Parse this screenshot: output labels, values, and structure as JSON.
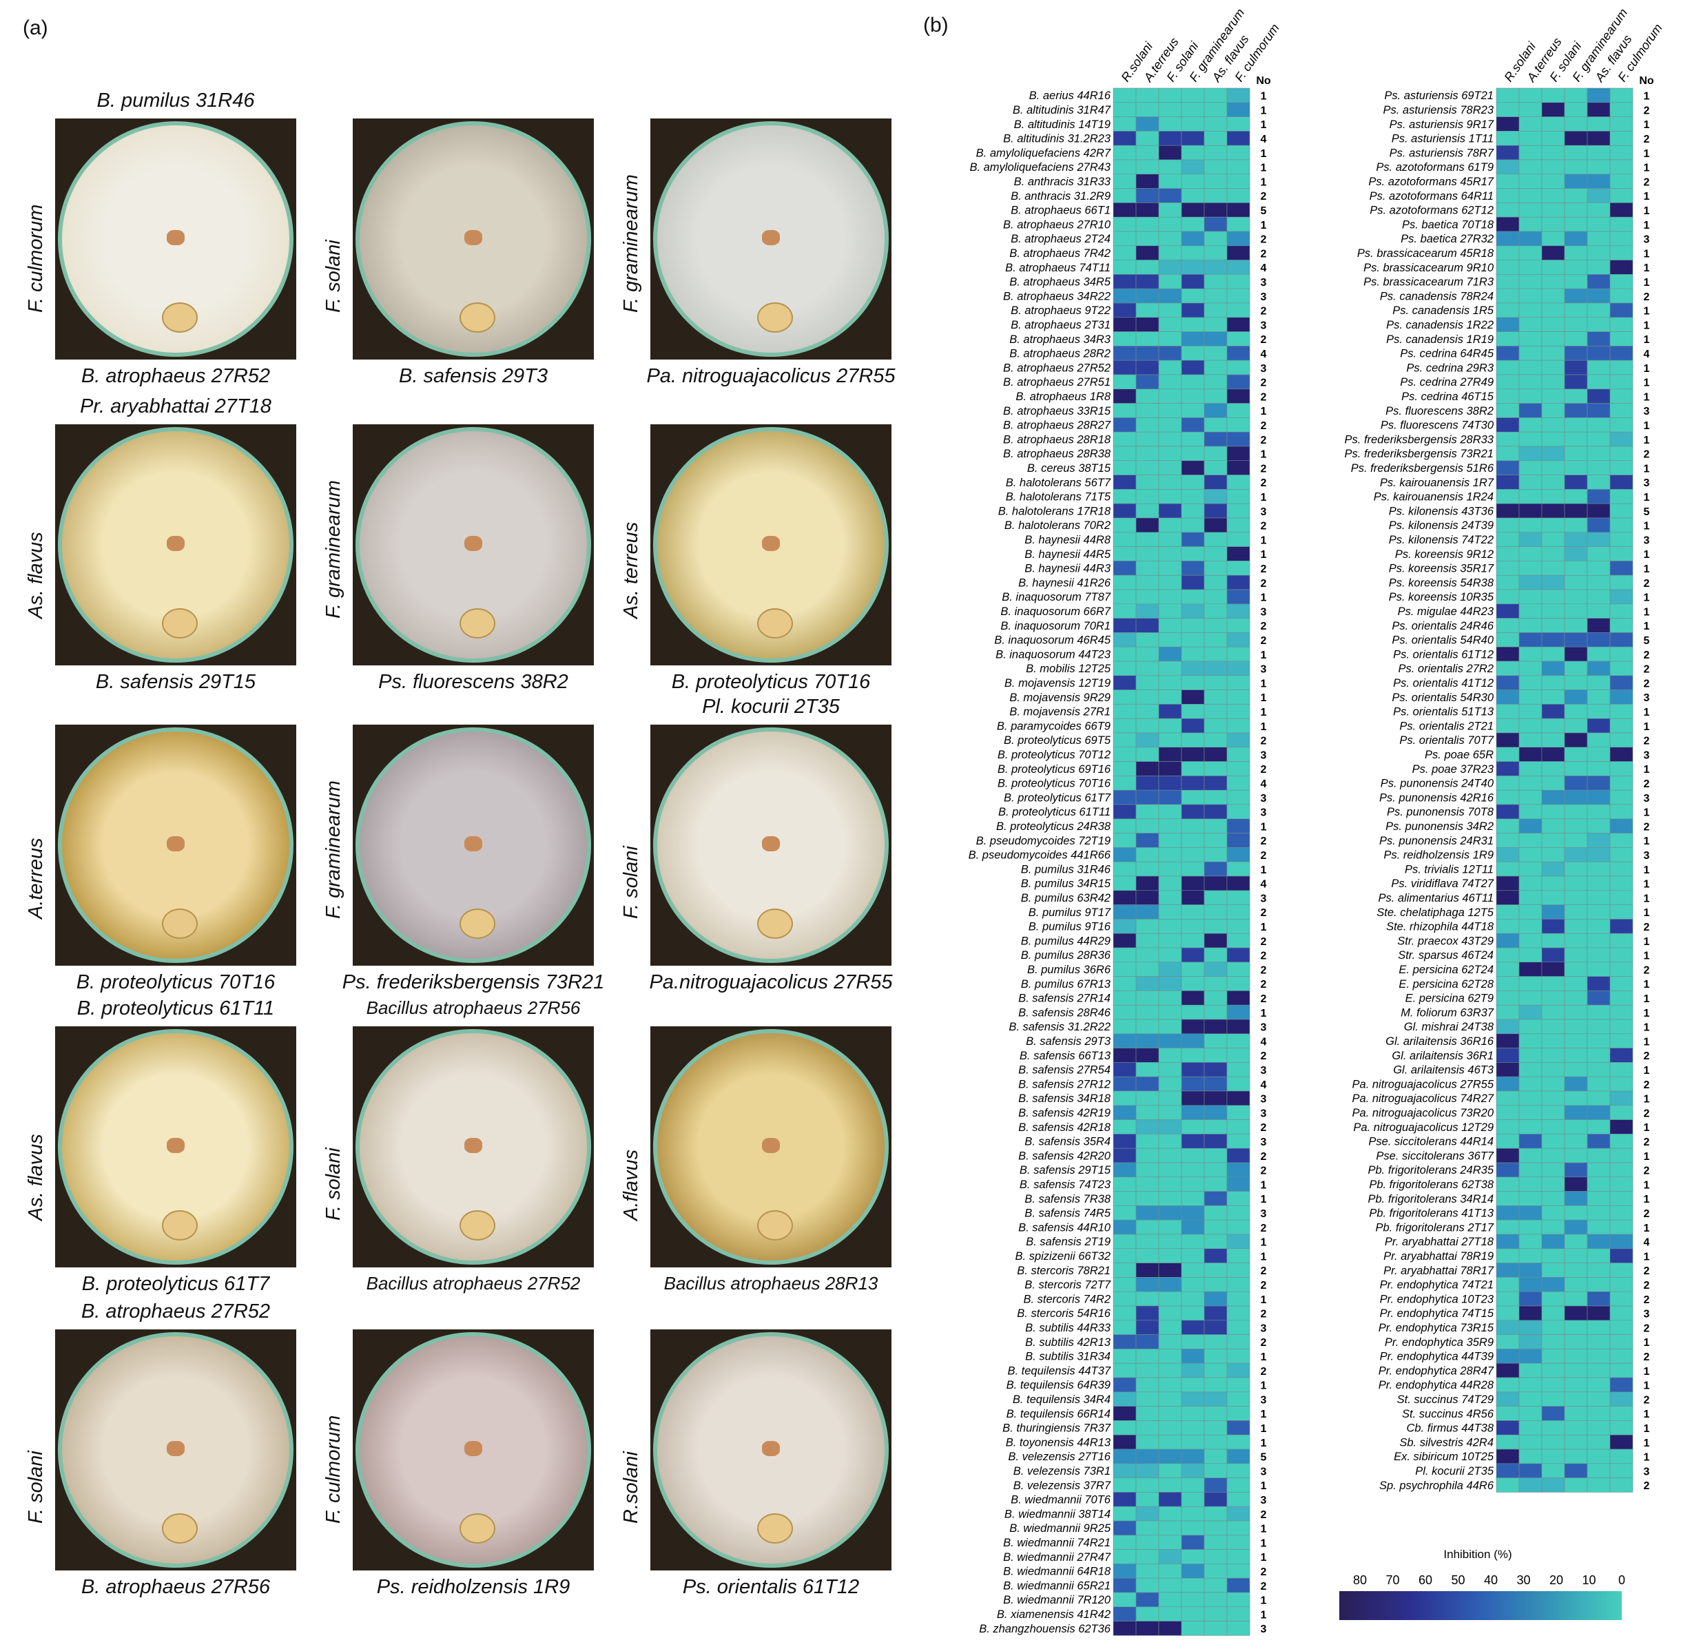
{
  "panel_labels": {
    "a": "(a)",
    "b": "(b)"
  },
  "photos": [
    {
      "top": "B.  pumilus 31R46",
      "side": "F. culmorum",
      "bottom": "B.  atrophaeus 27R52",
      "colors": [
        "#f0ede4",
        "#e8e2cf"
      ]
    },
    {
      "top": "",
      "side": "F. solani",
      "bottom": "B.  safensis 29T3",
      "colors": [
        "#d9d3c3",
        "#b8b0a0"
      ]
    },
    {
      "top": "",
      "side": "F. graminearum",
      "bottom": "Pa. nitroguajacolicus 27R55",
      "colors": [
        "#dfe0dc",
        "#c8cac4"
      ]
    },
    {
      "top": "Pr. aryabhattai 27T18",
      "side": "As. flavus",
      "bottom": "B.  safensis 29T15",
      "colors": [
        "#f2e6b8",
        "#c9b070"
      ]
    },
    {
      "top": "",
      "side": "F. graminearum",
      "bottom": "Ps.  fluorescens 38R2",
      "colors": [
        "#d8d2ce",
        "#bdb5b0"
      ]
    },
    {
      "top": "",
      "side": "As. terreus",
      "bottom": "B. proteolyticus 70T16",
      "colors": [
        "#f0e3b4",
        "#bca45c"
      ]
    },
    {
      "top": "",
      "side": "A.terreus",
      "bottom": "B.  proteolyticus 70T16",
      "colors": [
        "#efd9a0",
        "#b89540"
      ]
    },
    {
      "top": "",
      "side": "F. graminearum",
      "bottom": "Ps.  frederiksbergensis 73R21",
      "colors": [
        "#cbc4c6",
        "#a79da1"
      ]
    },
    {
      "top": "Pl. kocurii 2T35",
      "side": "F. solani",
      "bottom": "Pa.nitroguajacolicus 27R55",
      "colors": [
        "#ece7dc",
        "#cfc5b0"
      ]
    },
    {
      "top": "B.  proteolyticus 61T11",
      "side": "As. flavus",
      "bottom": "B.  proteolyticus 61T7",
      "colors": [
        "#f3e8c0",
        "#c9ac60"
      ]
    },
    {
      "top": "Bacillus atrophaeus 27R56",
      "side": "F. solani",
      "bottom": "Bacillus atrophaeus 27R52",
      "colors": [
        "#e8e1d6",
        "#c8bca6"
      ]
    },
    {
      "top": "",
      "side": "A.flavus",
      "bottom": "Bacillus atrophaeus 28R13",
      "colors": [
        "#ead596",
        "#b39045"
      ]
    },
    {
      "top": "B.  atrophaeus 27R52",
      "side": "F. solani",
      "bottom": "B.  atrophaeus 27R56",
      "colors": [
        "#e6ddcd",
        "#c4b49a"
      ]
    },
    {
      "top": "",
      "side": "F. culmorum",
      "bottom": "Ps.  reidholzensis 1R9",
      "colors": [
        "#d8c8c6",
        "#b09b97"
      ]
    },
    {
      "top": "",
      "side": "R.solani",
      "bottom": "Ps.  orientalis 61T12",
      "colors": [
        "#e6dfd6",
        "#c4b8a8"
      ]
    }
  ],
  "heatmap": {
    "columns": [
      "R.solani",
      "A.terreus",
      "F. solani",
      "F. graminearum",
      "As. flavus",
      "F. culmorum"
    ],
    "no_header": "No",
    "colorbar": {
      "title": "Inhibition (%)",
      "ticks": [
        "80",
        "70",
        "60",
        "50",
        "40",
        "30",
        "20",
        "10",
        "0"
      ]
    },
    "left": [
      [
        "B.  aerius 44R16",
        "1"
      ],
      [
        "B.  altitudinis 31R47",
        "1"
      ],
      [
        "B.  altitudinis 14T19",
        "1"
      ],
      [
        "B.  altitudinis 31.2R23",
        "4"
      ],
      [
        "B.  amyloliquefaciens 42R7",
        "1"
      ],
      [
        "B.  amyloliquefaciens 27R43",
        "1"
      ],
      [
        "B.  anthracis 31R33",
        "1"
      ],
      [
        "B.  anthracis 31.2R9",
        "2"
      ],
      [
        "B.  atrophaeus 66T1",
        "5"
      ],
      [
        "B.  atrophaeus 27R10",
        "1"
      ],
      [
        "B.  atrophaeus 2T24",
        "2"
      ],
      [
        "B.  atrophaeus 7R42",
        "2"
      ],
      [
        "B.  atrophaeus 74T11",
        "4"
      ],
      [
        "B.  atrophaeus 34R5",
        "3"
      ],
      [
        "B.  atrophaeus 34R22",
        "3"
      ],
      [
        "B.  atrophaeus 9T22",
        "2"
      ],
      [
        "B.  atrophaeus 2T31",
        "3"
      ],
      [
        "B.  atrophaeus 34R3",
        "2"
      ],
      [
        "B.  atrophaeus 28R2",
        "4"
      ],
      [
        "B.  atrophaeus 27R52",
        "3"
      ],
      [
        "B.  atrophaeus 27R51",
        "2"
      ],
      [
        "B.  atrophaeus 1R8",
        "2"
      ],
      [
        "B.  atrophaeus 33R15",
        "1"
      ],
      [
        "B.  atrophaeus 28R27",
        "2"
      ],
      [
        "B.  atrophaeus 28R18",
        "2"
      ],
      [
        "B.  atrophaeus 28R38",
        "1"
      ],
      [
        "B.  cereus 38T15",
        "2"
      ],
      [
        "B.  halotolerans 56T7",
        "2"
      ],
      [
        "B.  halotolerans 71T5",
        "1"
      ],
      [
        "B.  halotolerans 17R18",
        "3"
      ],
      [
        "B.  halotolerans 70R2",
        "2"
      ],
      [
        "B.  haynesii 44R8",
        "1"
      ],
      [
        "B.  haynesii 44R5",
        "1"
      ],
      [
        "B.  haynesii 44R3",
        "2"
      ],
      [
        "B.  haynesii 41R26",
        "2"
      ],
      [
        "B.  inaquosorum 7T87",
        "1"
      ],
      [
        "B.  inaquosorum 66R7",
        "3"
      ],
      [
        "B.  inaquosorum 70R1",
        "2"
      ],
      [
        "B.  inaquosorum 46R45",
        "2"
      ],
      [
        "B.  inaquosorum 44T23",
        "1"
      ],
      [
        "B.  mobilis 12T25",
        "3"
      ],
      [
        "B.  mojavensis 12T19",
        "1"
      ],
      [
        "B.  mojavensis 9R29",
        "1"
      ],
      [
        "B.  mojavensis 27R1",
        "1"
      ],
      [
        "B.  paramycoides 66T9",
        "1"
      ],
      [
        "B.  proteolyticus 69T5",
        "2"
      ],
      [
        "B.  proteolyticus 70T12",
        "3"
      ],
      [
        "B.  proteolyticus 69T16",
        "2"
      ],
      [
        "B.  proteolyticus 70T16",
        "4"
      ],
      [
        "B.  proteolyticus 61T7",
        "3"
      ],
      [
        "B.  proteolyticus 61T11",
        "3"
      ],
      [
        "B.  proteolyticus 24R38",
        "1"
      ],
      [
        "B.  pseudomycoides 72T19",
        "2"
      ],
      [
        "B.  pseudomycoides 441R66",
        "2"
      ],
      [
        "B.  pumilus 31R46",
        "1"
      ],
      [
        "B.  pumilus 34R15",
        "4"
      ],
      [
        "B.  pumilus 63R42",
        "3"
      ],
      [
        "B.  pumilus 9T17",
        "2"
      ],
      [
        "B.  pumilus 9T16",
        "1"
      ],
      [
        "B.  pumilus 44R29",
        "2"
      ],
      [
        "B.  pumilus 28R36",
        "2"
      ],
      [
        "B.  pumilus 36R6",
        "2"
      ],
      [
        "B.  pumilus 67R13",
        "2"
      ],
      [
        "B.  safensis 27R14",
        "2"
      ],
      [
        "B.  safensis 28R46",
        "1"
      ],
      [
        "B.  safensis 31.2R22",
        "3"
      ],
      [
        "B.  safensis 29T3",
        "4"
      ],
      [
        "B.  safensis 66T13",
        "2"
      ],
      [
        "B.  safensis 27R54",
        "3"
      ],
      [
        "B.  safensis 27R12",
        "4"
      ],
      [
        "B.  safensis 34R18",
        "3"
      ],
      [
        "B.  safensis 42R19",
        "3"
      ],
      [
        "B.  safensis 42R18",
        "2"
      ],
      [
        "B.  safensis 35R4",
        "3"
      ],
      [
        "B.  safensis 42R20",
        "2"
      ],
      [
        "B.  safensis 29T15",
        "2"
      ],
      [
        "B.  safensis 74T23",
        "1"
      ],
      [
        "B.  safensis 7R38",
        "1"
      ],
      [
        "B.  safensis 74R5",
        "3"
      ],
      [
        "B.  safensis 44R10",
        "2"
      ],
      [
        "B.  safensis 2T19",
        "1"
      ],
      [
        "B.  spizizenii 66T32",
        "1"
      ],
      [
        "B.  stercoris 78R21",
        "2"
      ],
      [
        "B.  stercoris 72T7",
        "2"
      ],
      [
        "B.  stercoris 74R2",
        "1"
      ],
      [
        "B.  stercoris 54R16",
        "2"
      ],
      [
        "B.  subtilis 44R33",
        "3"
      ],
      [
        "B.  subtilis 42R13",
        "2"
      ],
      [
        "B.  subtilis 31R34",
        "1"
      ],
      [
        "B.  tequilensis 44T37",
        "2"
      ],
      [
        "B.  tequilensis 64R39",
        "1"
      ],
      [
        "B.  tequilensis 34R4",
        "3"
      ],
      [
        "B.  tequilensis 66R14",
        "1"
      ],
      [
        "B.  thuringiensis 7R37",
        "1"
      ],
      [
        "B.  toyonensis 44R13",
        "1"
      ],
      [
        "B.  velezensis 27T16",
        "5"
      ],
      [
        "B.  velezensis 73R1",
        "3"
      ],
      [
        "B.  velezensis 37R7",
        "1"
      ],
      [
        "B.  wiedmannii 70T6",
        "3"
      ],
      [
        "B.  wiedmannii 38T14",
        "2"
      ],
      [
        "B.  wiedmannii 9R25",
        "1"
      ],
      [
        "B.  wiedmannii 74R21",
        "1"
      ],
      [
        "B.  wiedmannii 27R47",
        "1"
      ],
      [
        "B.  wiedmannii 64R18",
        "2"
      ],
      [
        "B.  wiedmannii 65R21",
        "2"
      ],
      [
        "B.  wiedmannii 7R120",
        "1"
      ],
      [
        "B.  xiamenensis 41R42",
        "1"
      ],
      [
        "B.  zhangzhouensis 62T36",
        "3"
      ]
    ],
    "right": [
      [
        "Ps.  asturiensis 69T21",
        "1"
      ],
      [
        "Ps.  asturiensis 78R23",
        "2"
      ],
      [
        "Ps.  asturiensis 9R17",
        "1"
      ],
      [
        "Ps.  asturiensis 1T11",
        "2"
      ],
      [
        "Ps.  asturiensis 78R7",
        "1"
      ],
      [
        "Ps.  azotoformans 61T9",
        "1"
      ],
      [
        "Ps.  azotoformans 45R17",
        "2"
      ],
      [
        "Ps.  azotoformans 64R11",
        "1"
      ],
      [
        "Ps.  azotoformans 62T12",
        "1"
      ],
      [
        "Ps.  baetica 70T18",
        "1"
      ],
      [
        "Ps.  baetica 27R32",
        "3"
      ],
      [
        "Ps.  brassicacearum 45R18",
        "1"
      ],
      [
        "Ps.  brassicacearum 9R10",
        "1"
      ],
      [
        "Ps.  brassicacearum 71R3",
        "1"
      ],
      [
        "Ps.  canadensis 78R24",
        "2"
      ],
      [
        "Ps.  canadensis 1R5",
        "1"
      ],
      [
        "Ps.  canadensis 1R22",
        "1"
      ],
      [
        "Ps.  canadensis 1R19",
        "1"
      ],
      [
        "Ps.  cedrina 64R45",
        "4"
      ],
      [
        "Ps.  cedrina 29R3",
        "1"
      ],
      [
        "Ps.  cedrina 27R49",
        "1"
      ],
      [
        "Ps.  cedrina 46T15",
        "1"
      ],
      [
        "Ps.  fluorescens 38R2",
        "3"
      ],
      [
        "Ps.  fluorescens 74T30",
        "1"
      ],
      [
        "Ps.  frederiksbergensis 28R33",
        "1"
      ],
      [
        "Ps.  frederiksbergensis 73R21",
        "2"
      ],
      [
        "Ps.  frederiksbergensis 51R6",
        "1"
      ],
      [
        "Ps.  kairouanensis 1R7",
        "3"
      ],
      [
        "Ps.  kairouanensis 1R24",
        "1"
      ],
      [
        "Ps.  kilonensis 43T36",
        "5"
      ],
      [
        "Ps.  kilonensis 24T39",
        "1"
      ],
      [
        "Ps.  kilonensis 74T22",
        "3"
      ],
      [
        "Ps.  koreensis 9R12",
        "1"
      ],
      [
        "Ps.  koreensis 35R17",
        "1"
      ],
      [
        "Ps.  koreensis 54R38",
        "2"
      ],
      [
        "Ps.  koreensis 10R35",
        "1"
      ],
      [
        "Ps.  migulae 44R23",
        "1"
      ],
      [
        "Ps.  orientalis 24R46",
        "1"
      ],
      [
        "Ps.  orientalis 54R40",
        "5"
      ],
      [
        "Ps.  orientalis 61T12",
        "2"
      ],
      [
        "Ps.  orientalis 27R2",
        "2"
      ],
      [
        "Ps.  orientalis 41T12",
        "2"
      ],
      [
        "Ps.  orientalis 54R30",
        "3"
      ],
      [
        "Ps.  orientalis 51T13",
        "1"
      ],
      [
        "Ps.  orientalis 2T21",
        "1"
      ],
      [
        "Ps.  orientalis 70T7",
        "2"
      ],
      [
        "Ps.  poae 65R",
        "3"
      ],
      [
        "Ps.  poae 37R23",
        "1"
      ],
      [
        "Ps.  punonensis 24T40",
        "2"
      ],
      [
        "Ps.  punonensis 42R16",
        "3"
      ],
      [
        "Ps.  punonensis 70T8",
        "1"
      ],
      [
        "Ps.  punonensis 34R2",
        "2"
      ],
      [
        "Ps.  punonensis 24R31",
        "1"
      ],
      [
        "Ps.  reidholzensis 1R9",
        "3"
      ],
      [
        "Ps.  trivialis 12T11",
        "1"
      ],
      [
        "Ps.  viridiflava 74T27",
        "1"
      ],
      [
        "Ps.  alimentarius 46T11",
        "1"
      ],
      [
        "Ste.  chelatiphaga 12T5",
        "1"
      ],
      [
        "Ste.  rhizophila 44T18",
        "2"
      ],
      [
        "Str.  praecox 43T29",
        "1"
      ],
      [
        "Str.  sparsus 46T24",
        "1"
      ],
      [
        "E.  persicina 62T24",
        "2"
      ],
      [
        "E.  persicina 62T28",
        "1"
      ],
      [
        "E.  persicina 62T9",
        "1"
      ],
      [
        "M.  foliorum 63R37",
        "1"
      ],
      [
        "Gl.  mishrai 24T38",
        "1"
      ],
      [
        "Gl.  arilaitensis 36R16",
        "1"
      ],
      [
        "Gl.  arilaitensis 36R1",
        "2"
      ],
      [
        "Gl.  arilaitensis 46T3",
        "1"
      ],
      [
        "Pa.  nitroguajacolicus 27R55",
        "2"
      ],
      [
        "Pa.  nitroguajacolicus 74R27",
        "1"
      ],
      [
        "Pa.  nitroguajacolicus 73R20",
        "2"
      ],
      [
        "Pa.  nitroguajacolicus 12T29",
        "1"
      ],
      [
        "Pse.  siccitolerans 44R14",
        "2"
      ],
      [
        "Pse.  siccitolerans 36T7",
        "1"
      ],
      [
        "Pb.  frigoritolerans 24R35",
        "2"
      ],
      [
        "Pb.  frigoritolerans 62T38",
        "1"
      ],
      [
        "Pb.  frigoritolerans 34R14",
        "1"
      ],
      [
        "Pb.  frigoritolerans 41T13",
        "2"
      ],
      [
        "Pb.  frigoritolerans 2T17",
        "1"
      ],
      [
        "Pr.  aryabhattai 27T18",
        "4"
      ],
      [
        "Pr.  aryabhattai 78R19",
        "1"
      ],
      [
        "Pr.  aryabhattai 78R17",
        "2"
      ],
      [
        "Pr.  endophytica 74T21",
        "2"
      ],
      [
        "Pr.  endophytica 10T23",
        "2"
      ],
      [
        "Pr.  endophytica 74T15",
        "3"
      ],
      [
        "Pr.  endophytica 73R15",
        "2"
      ],
      [
        "Pr.  endophytica 35R9",
        "1"
      ],
      [
        "Pr.  endophytica 44T39",
        "2"
      ],
      [
        "Pr.  endophytica 28R47",
        "1"
      ],
      [
        "Pr.  endophytica 44R28",
        "1"
      ],
      [
        "St.  succinus 74T29",
        "2"
      ],
      [
        "St.  succinus 4R56",
        "1"
      ],
      [
        "Cb.  firmus 44T38",
        "1"
      ],
      [
        "Sb.  silvestris 42R4",
        "1"
      ],
      [
        "Ex.  sibiricum 10T25",
        "1"
      ],
      [
        "Pl.  kocurii 2T35",
        "3"
      ],
      [
        "Sp.  psychrophila 44R6",
        "2"
      ]
    ]
  }
}
